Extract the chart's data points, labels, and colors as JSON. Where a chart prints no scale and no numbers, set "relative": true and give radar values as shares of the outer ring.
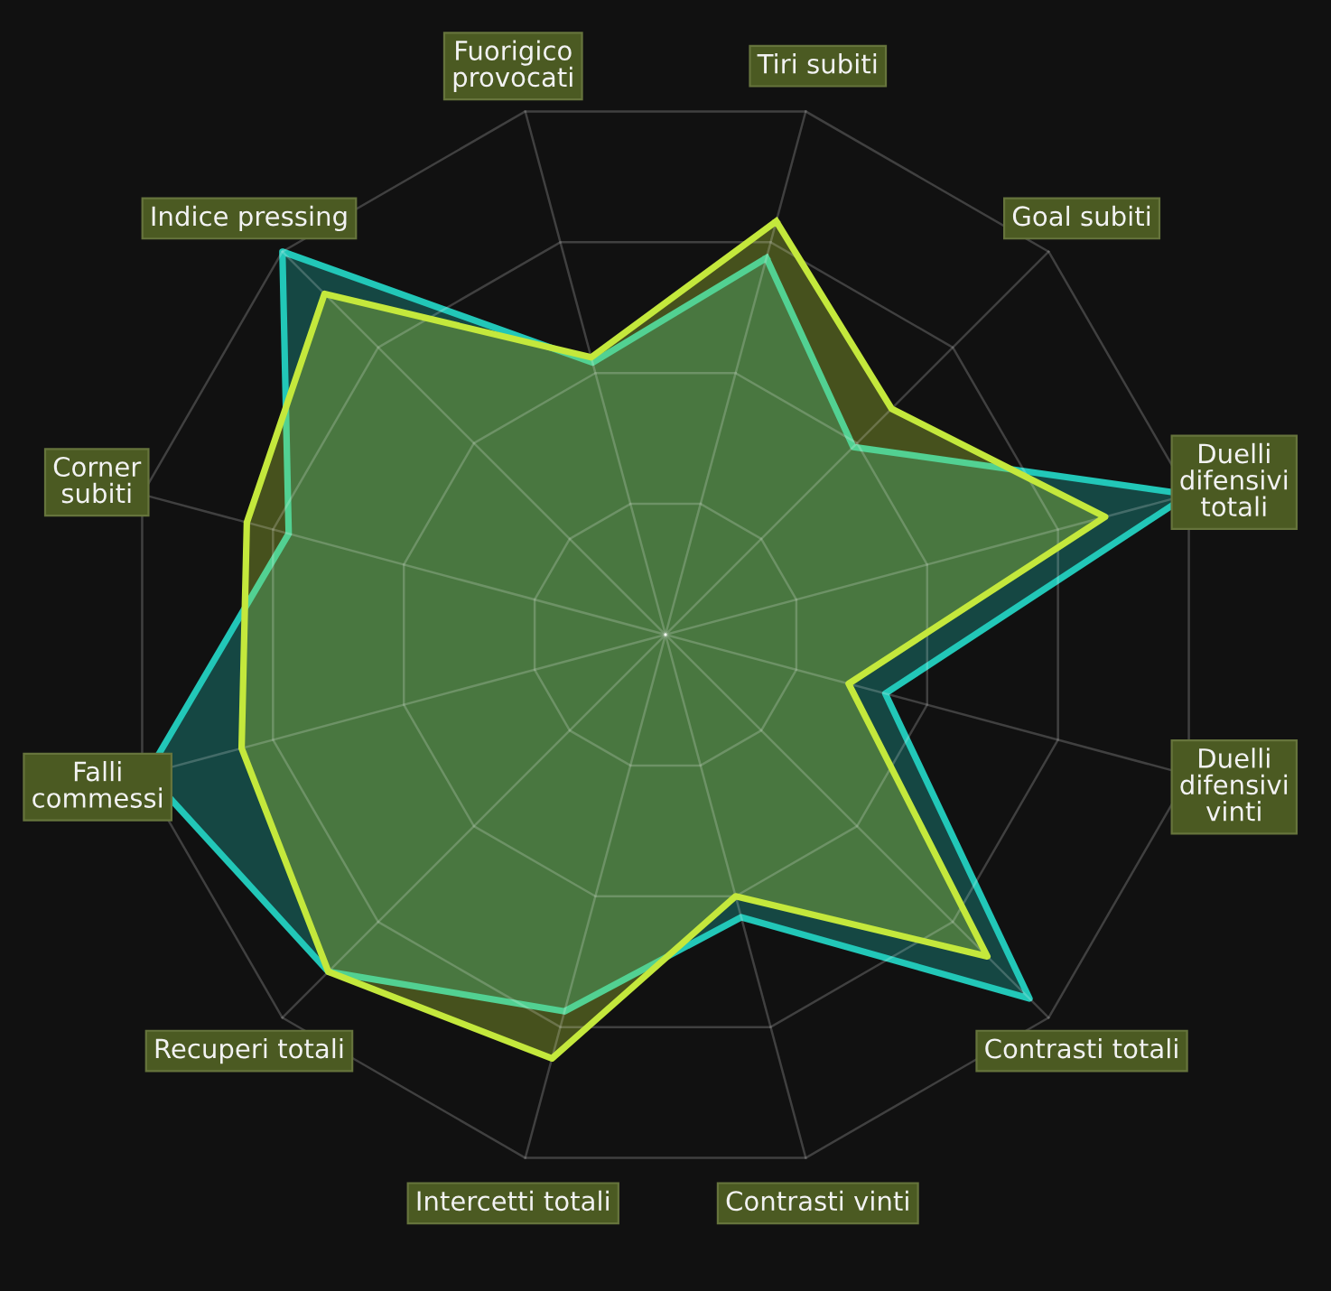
{
  "chart_data": {
    "type": "radar",
    "relative": true,
    "grid": true,
    "categories": [
      "Tiri subiti",
      "Goal subiti",
      "Duelli\ndifensivi\ntotali",
      "Duelli\ndifensivi\nvinti",
      "Contrasti totali",
      "Contrasti vinti",
      "Intercetti totali",
      "Recuperi totali",
      "Falli\ncommessi",
      "Corner\nsubiti",
      "Indice pressing",
      "Fuorigico\nprovocati"
    ],
    "series": [
      {
        "color": "#22c7b8",
        "values": [
          0.72,
          0.49,
          1.0,
          0.42,
          0.95,
          0.54,
          0.72,
          0.88,
          0.99,
          0.72,
          1.0,
          0.52
        ]
      },
      {
        "color": "#c4e83c",
        "values": [
          0.79,
          0.59,
          0.84,
          0.35,
          0.84,
          0.5,
          0.81,
          0.88,
          0.81,
          0.8,
          0.89,
          0.53
        ]
      }
    ]
  }
}
